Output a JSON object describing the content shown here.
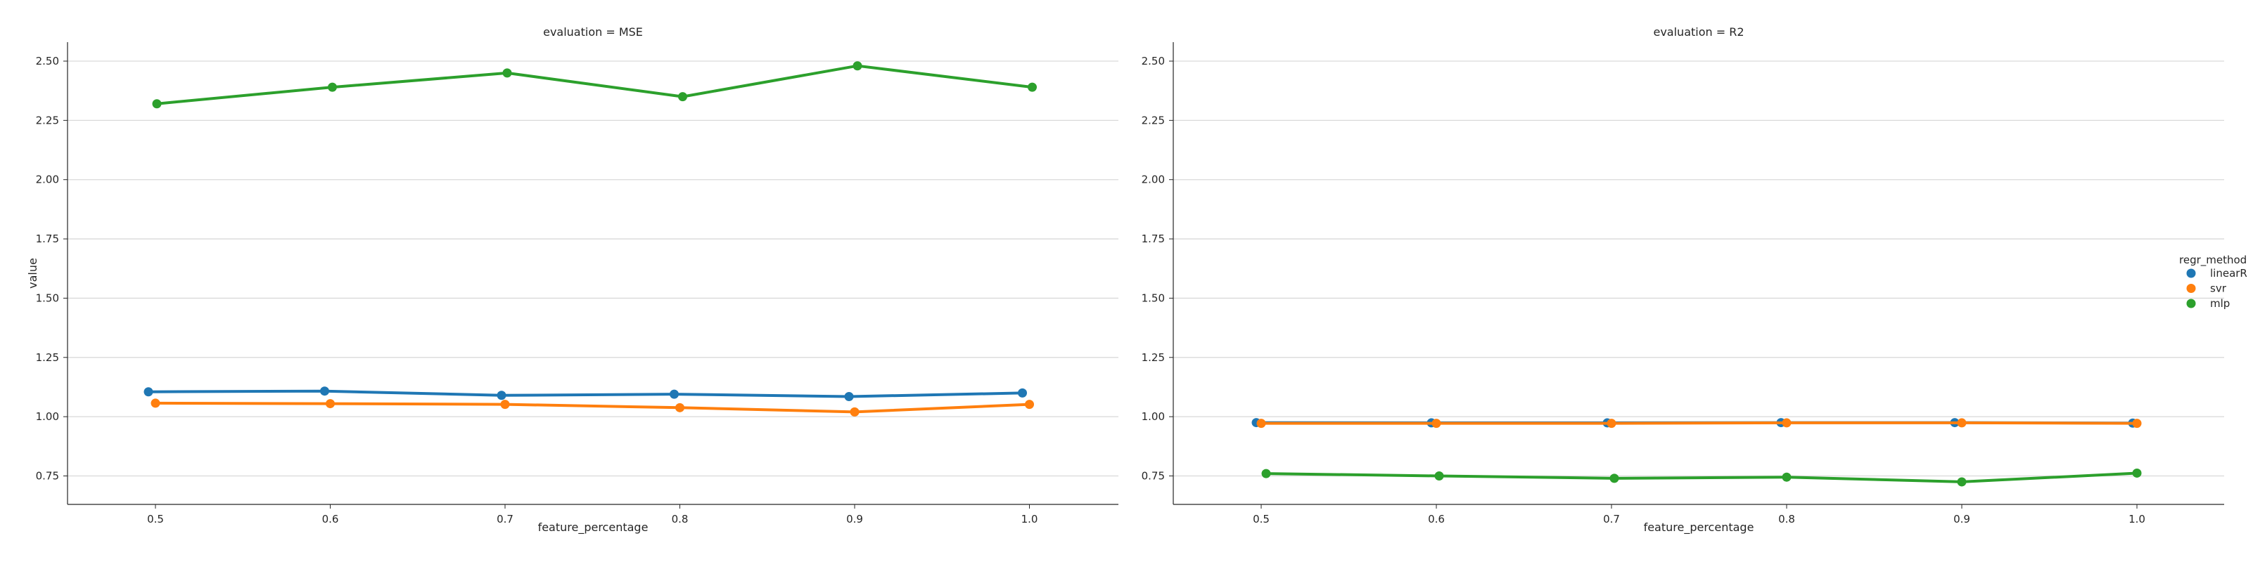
{
  "chart_data": [
    {
      "type": "line",
      "title": "evaluation = MSE",
      "xlabel": "feature_percentage",
      "ylabel": "value",
      "categories": [
        "0.5",
        "0.6",
        "0.7",
        "0.8",
        "0.9",
        "1.0"
      ],
      "yticks": [
        "0.75",
        "1.00",
        "1.25",
        "1.50",
        "1.75",
        "2.00",
        "2.25",
        "2.50"
      ],
      "ylim": [
        0.63,
        2.58
      ],
      "grid": "horizontal",
      "series": [
        {
          "name": "linearR",
          "color": "#1f77b4",
          "values": [
            1.105,
            1.108,
            1.09,
            1.095,
            1.085,
            1.1
          ]
        },
        {
          "name": "svr",
          "color": "#ff7f0e",
          "values": [
            1.057,
            1.055,
            1.052,
            1.038,
            1.02,
            1.052
          ]
        },
        {
          "name": "mlp",
          "color": "#2ca02c",
          "values": [
            2.32,
            2.39,
            2.45,
            2.35,
            2.48,
            2.39
          ]
        }
      ]
    },
    {
      "type": "line",
      "title": "evaluation = R2",
      "xlabel": "feature_percentage",
      "ylabel": "",
      "categories": [
        "0.5",
        "0.6",
        "0.7",
        "0.8",
        "0.9",
        "1.0"
      ],
      "yticks": [
        "0.75",
        "1.00",
        "1.25",
        "1.50",
        "1.75",
        "2.00",
        "2.25",
        "2.50"
      ],
      "ylim": [
        0.63,
        2.58
      ],
      "grid": "horizontal",
      "series": [
        {
          "name": "linearR",
          "color": "#1f77b4",
          "values": [
            0.975,
            0.974,
            0.974,
            0.975,
            0.975,
            0.973
          ]
        },
        {
          "name": "svr",
          "color": "#ff7f0e",
          "values": [
            0.972,
            0.972,
            0.972,
            0.974,
            0.974,
            0.972
          ]
        },
        {
          "name": "mlp",
          "color": "#2ca02c",
          "values": [
            0.76,
            0.75,
            0.74,
            0.745,
            0.725,
            0.762
          ]
        }
      ]
    }
  ],
  "legend": {
    "title": "regr_method",
    "placement": "right",
    "items": [
      {
        "label": "linearR",
        "color": "#1f77b4"
      },
      {
        "label": "svr",
        "color": "#ff7f0e"
      },
      {
        "label": "mlp",
        "color": "#2ca02c"
      }
    ]
  }
}
